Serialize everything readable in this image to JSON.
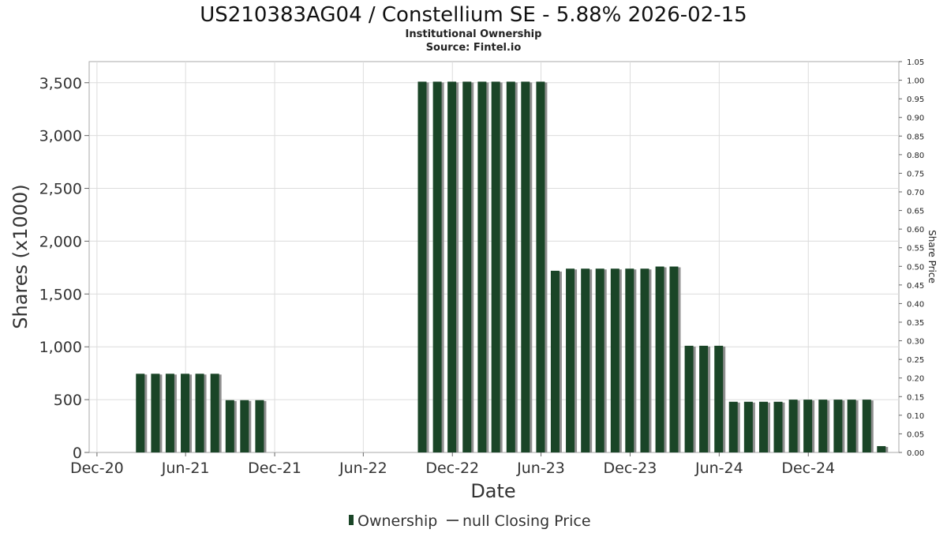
{
  "chart_data": {
    "type": "bar",
    "title": "US210383AG04 / Constellium SE - 5.88% 2026-02-15",
    "subtitle": "Institutional Ownership",
    "source": "Source: Fintel.io",
    "xlabel": "Date",
    "ylabel": "Shares (x1000)",
    "y2label": "Share Price",
    "ylim": [
      0,
      3700
    ],
    "y2lim": [
      0,
      1.05
    ],
    "y_ticks": [
      "0",
      "500",
      "1,000",
      "1,500",
      "2,000",
      "2,500",
      "3,000",
      "3,500"
    ],
    "y2_ticks": [
      "0.00",
      "0.05",
      "0.10",
      "0.15",
      "0.20",
      "0.25",
      "0.30",
      "0.35",
      "0.40",
      "0.45",
      "0.50",
      "0.55",
      "0.60",
      "0.65",
      "0.70",
      "0.75",
      "0.80",
      "0.85",
      "0.90",
      "0.95",
      "1.00",
      "1.05"
    ],
    "x_ticks": [
      "Dec-20",
      "Jun-21",
      "Dec-21",
      "Jun-22",
      "Dec-22",
      "Jun-23",
      "Dec-23",
      "Jun-24",
      "Dec-24"
    ],
    "x_range": [
      "2020-11-15",
      "2025-06-05"
    ],
    "bar_color": "#1a4527",
    "grid": true,
    "legend_position": "bottom",
    "series": [
      {
        "name": "Ownership",
        "dates": [
          "2021-02-28",
          "2021-03-31",
          "2021-04-30",
          "2021-05-31",
          "2021-06-30",
          "2021-07-31",
          "2021-08-31",
          "2021-09-30",
          "2021-10-31",
          "2022-09-30",
          "2022-10-31",
          "2022-11-30",
          "2022-12-31",
          "2023-01-31",
          "2023-02-28",
          "2023-03-31",
          "2023-04-30",
          "2023-05-31",
          "2023-06-30",
          "2023-07-31",
          "2023-08-31",
          "2023-09-30",
          "2023-10-31",
          "2023-11-30",
          "2023-12-31",
          "2024-01-31",
          "2024-02-29",
          "2024-03-31",
          "2024-04-30",
          "2024-05-31",
          "2024-06-30",
          "2024-07-31",
          "2024-08-31",
          "2024-09-30",
          "2024-10-31",
          "2024-11-30",
          "2024-12-31",
          "2025-01-31",
          "2025-02-28",
          "2025-03-31",
          "2025-04-30"
        ],
        "values": [
          745,
          745,
          745,
          745,
          745,
          745,
          495,
          495,
          495,
          3510,
          3510,
          3510,
          3510,
          3510,
          3510,
          3510,
          3510,
          3510,
          1720,
          1740,
          1740,
          1740,
          1740,
          1740,
          1740,
          1760,
          1760,
          1010,
          1010,
          1010,
          480,
          480,
          480,
          480,
          500,
          500,
          500,
          500,
          500,
          500,
          60
        ]
      },
      {
        "name": "null Closing Price",
        "values": []
      }
    ]
  },
  "legend": {
    "ownership_label": "Ownership",
    "price_label": "null Closing Price"
  }
}
